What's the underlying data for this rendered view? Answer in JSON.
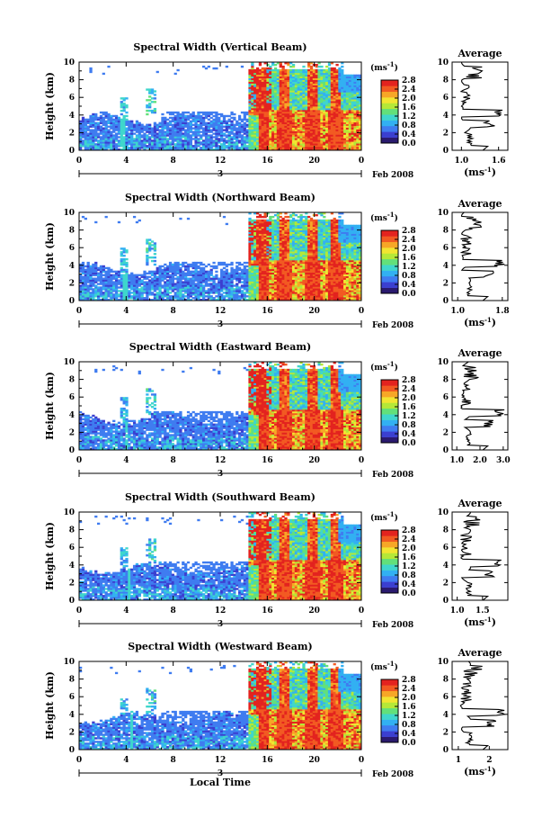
{
  "chart_data": [
    {
      "type": "heatmap",
      "title": "Spectral Width (Vertical Beam)",
      "ylabel": "Height (km)",
      "x_ticks": [
        "0",
        "4",
        "8",
        "12",
        "16",
        "20",
        "0"
      ],
      "y_ticks": [
        "0",
        "2",
        "4",
        "6",
        "8",
        "10"
      ],
      "xlim": [
        0,
        24
      ],
      "ylim": [
        0,
        10
      ],
      "date_tick": "3",
      "date_label": "Feb 2008",
      "colorbar": {
        "unit": "(ms⁻¹)",
        "ticks": [
          "0.0",
          "0.4",
          "0.8",
          "1.2",
          "1.6",
          "2.0",
          "2.4",
          "2.8"
        ],
        "range": [
          0,
          2.8
        ]
      },
      "profile": {
        "title": "Average",
        "xlabel": "(ms⁻¹)",
        "x_ticks": [
          "1.0",
          "1.6"
        ],
        "xlim": [
          0.85,
          1.75
        ],
        "y_ticks": [
          "0",
          "2",
          "4",
          "6",
          "8",
          "10"
        ]
      }
    },
    {
      "type": "heatmap",
      "title": "Spectral Width (Northward Beam)",
      "ylabel": "Height (km)",
      "x_ticks": [
        "0",
        "4",
        "8",
        "12",
        "16",
        "20",
        "0"
      ],
      "y_ticks": [
        "0",
        "2",
        "4",
        "6",
        "8",
        "10"
      ],
      "xlim": [
        0,
        24
      ],
      "ylim": [
        0,
        10
      ],
      "date_tick": "3",
      "date_label": "Feb 2008",
      "colorbar": {
        "unit": "(ms⁻¹)",
        "ticks": [
          "0.0",
          "0.4",
          "0.8",
          "1.2",
          "1.6",
          "2.0",
          "2.4",
          "2.8"
        ],
        "range": [
          0,
          2.8
        ]
      },
      "profile": {
        "title": "Average",
        "xlabel": "(ms⁻¹)",
        "x_ticks": [
          "1.0",
          "1.8"
        ],
        "xlim": [
          0.9,
          1.9
        ],
        "y_ticks": [
          "0",
          "2",
          "4",
          "6",
          "8",
          "10"
        ]
      }
    },
    {
      "type": "heatmap",
      "title": "Spectral Width (Eastward Beam)",
      "ylabel": "Height (km)",
      "x_ticks": [
        "0",
        "4",
        "8",
        "12",
        "16",
        "20",
        "0"
      ],
      "y_ticks": [
        "0",
        "2",
        "4",
        "6",
        "8",
        "10"
      ],
      "xlim": [
        0,
        24
      ],
      "ylim": [
        0,
        10
      ],
      "date_tick": "3",
      "date_label": "Feb 2008",
      "colorbar": {
        "unit": "(ms⁻¹)",
        "ticks": [
          "0.0",
          "0.4",
          "0.8",
          "1.2",
          "1.6",
          "2.0",
          "2.4",
          "2.8"
        ],
        "range": [
          0,
          2.8
        ]
      },
      "profile": {
        "title": "Average",
        "xlabel": "",
        "x_ticks": [
          "1.0",
          "2.0",
          "3.0"
        ],
        "xlim": [
          0.8,
          3.2
        ],
        "y_ticks": [
          "0",
          "2",
          "4",
          "6",
          "8",
          "10"
        ]
      }
    },
    {
      "type": "heatmap",
      "title": "Spectral Width (Southward Beam)",
      "ylabel": "Height (km)",
      "x_ticks": [
        "0",
        "4",
        "8",
        "12",
        "16",
        "20",
        "0"
      ],
      "y_ticks": [
        "0",
        "2",
        "4",
        "6",
        "8",
        "10"
      ],
      "xlim": [
        0,
        24
      ],
      "ylim": [
        0,
        10
      ],
      "date_tick": "3",
      "date_label": "Feb 2008",
      "colorbar": {
        "unit": "(ms⁻¹)",
        "ticks": [
          "0.0",
          "0.4",
          "0.8",
          "1.2",
          "1.6",
          "2.0",
          "2.4",
          "2.8"
        ],
        "range": [
          0,
          2.8
        ]
      },
      "profile": {
        "title": "Average",
        "xlabel": "(ms⁻¹)",
        "x_ticks": [
          "1.0",
          "1.5"
        ],
        "xlim": [
          0.9,
          2.0
        ],
        "y_ticks": [
          "0",
          "2",
          "4",
          "6",
          "8",
          "10"
        ]
      }
    },
    {
      "type": "heatmap",
      "title": "Spectral Width (Westward Beam)",
      "ylabel": "Height (km)",
      "xlabel": "Local Time",
      "x_ticks": [
        "0",
        "4",
        "8",
        "12",
        "16",
        "20",
        "0"
      ],
      "y_ticks": [
        "0",
        "2",
        "4",
        "6",
        "8",
        "10"
      ],
      "xlim": [
        0,
        24
      ],
      "ylim": [
        0,
        10
      ],
      "date_tick": "3",
      "date_label": "Feb 2008",
      "colorbar": {
        "unit": "(ms⁻¹)",
        "ticks": [
          "0.0",
          "0.4",
          "0.8",
          "1.2",
          "1.6",
          "2.0",
          "2.4",
          "2.8"
        ],
        "range": [
          0,
          2.8
        ]
      },
      "profile": {
        "title": "Average",
        "xlabel": "(ms⁻¹)",
        "x_ticks": [
          "1",
          "2"
        ],
        "xlim": [
          0.8,
          2.6
        ],
        "y_ticks": [
          "0",
          "2",
          "4",
          "6",
          "8",
          "10"
        ]
      }
    }
  ],
  "colormap": [
    "#2a1a6e",
    "#3b3fd0",
    "#3f7cf0",
    "#32b0f2",
    "#3fd6cc",
    "#62e07a",
    "#b5e838",
    "#f2e531",
    "#f7a727",
    "#f25a22",
    "#e3231f"
  ]
}
